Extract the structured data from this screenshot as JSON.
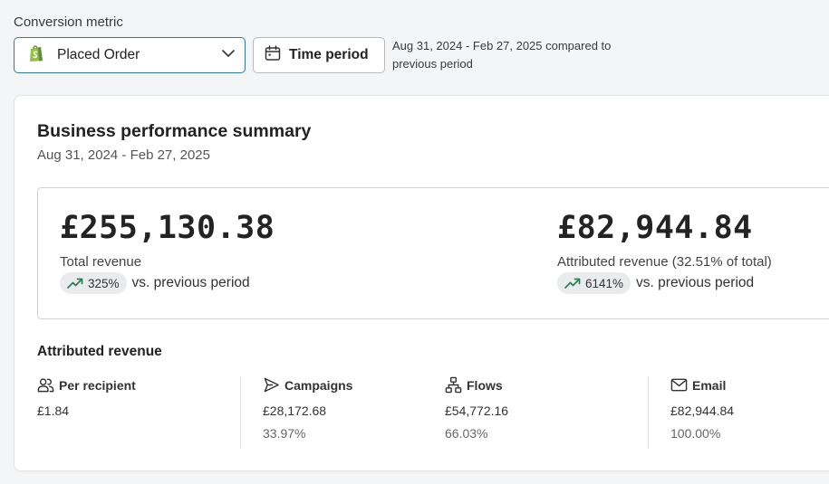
{
  "filters": {
    "metric_label": "Conversion metric",
    "metric_value": "Placed Order",
    "time_period_button": "Time period",
    "period_text": "Aug 31, 2024 - Feb 27, 2025 compared to previous period"
  },
  "summary": {
    "title": "Business performance summary",
    "date_range": "Aug 31, 2024 - Feb 27, 2025",
    "total_revenue": {
      "value": "£255,130.38",
      "label": "Total revenue",
      "change": "325%",
      "change_suffix": "vs. previous period"
    },
    "attributed_revenue": {
      "value": "£82,944.84",
      "label": "Attributed revenue (32.51% of total)",
      "change": "6141%",
      "change_suffix": "vs. previous period"
    }
  },
  "attributed": {
    "title": "Attributed revenue",
    "columns": [
      {
        "icon": "people-icon",
        "label": "Per recipient",
        "value": "£1.84",
        "percent": ""
      },
      {
        "icon": "send-icon",
        "label": "Campaigns",
        "value": "£28,172.68",
        "percent": "33.97%"
      },
      {
        "icon": "flow-icon",
        "label": "Flows",
        "value": "£54,772.16",
        "percent": "66.03%"
      },
      {
        "icon": "email-icon",
        "label": "Email",
        "value": "£82,944.84",
        "percent": "100.00%"
      }
    ]
  },
  "colors": {
    "select_border": "#2d7a9a",
    "trend_green": "#2e7d57",
    "shopify_green": "#95bf47"
  }
}
